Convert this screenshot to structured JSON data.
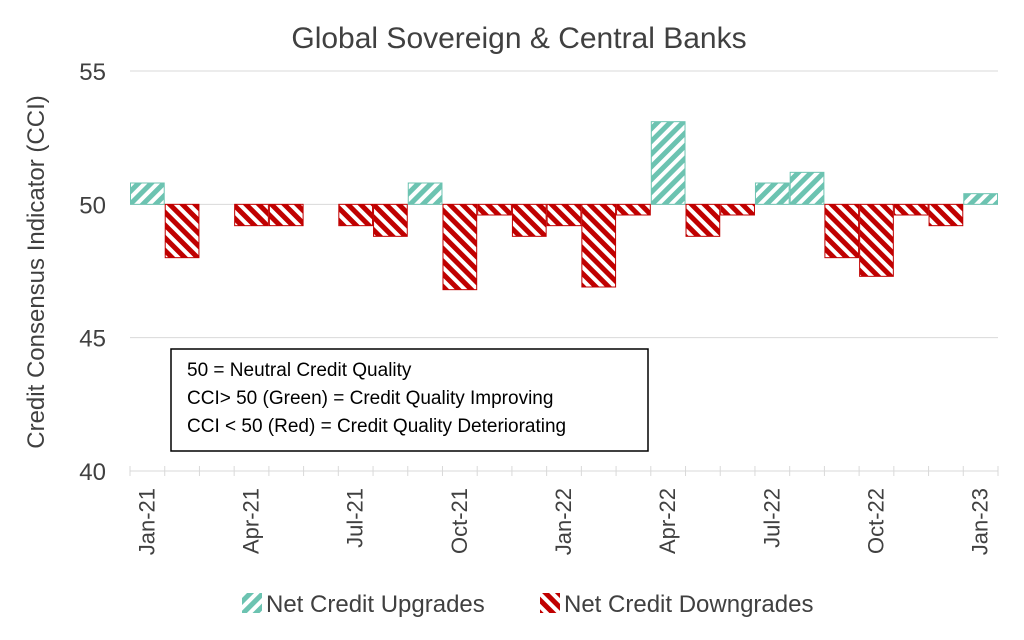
{
  "chart_data": {
    "type": "bar",
    "title": "Global Sovereign & Central Banks",
    "ylabel": "Credit Consensus Indicator (CCI)",
    "xlabel": "",
    "ylim": [
      40,
      55
    ],
    "yticks": [
      40,
      45,
      50,
      55
    ],
    "baseline": 50,
    "grid": "horizontal",
    "legend_position": "bottom",
    "categories": [
      "Jan-21",
      "Feb-21",
      "Mar-21",
      "Apr-21",
      "May-21",
      "Jun-21",
      "Jul-21",
      "Aug-21",
      "Sep-21",
      "Oct-21",
      "Nov-21",
      "Dec-21",
      "Jan-22",
      "Feb-22",
      "Mar-22",
      "Apr-22",
      "May-22",
      "Jun-22",
      "Jul-22",
      "Aug-22",
      "Sep-22",
      "Oct-22",
      "Nov-22",
      "Dec-22",
      "Jan-23"
    ],
    "x_tick_labels": [
      "Jan-21",
      "Apr-21",
      "Jul-21",
      "Oct-21",
      "Jan-22",
      "Apr-22",
      "Jul-22",
      "Oct-22",
      "Jan-23"
    ],
    "values": [
      50.8,
      48.0,
      null,
      49.2,
      49.2,
      null,
      49.2,
      48.8,
      50.8,
      46.8,
      49.6,
      48.8,
      49.2,
      46.9,
      49.6,
      53.1,
      48.8,
      49.6,
      50.8,
      51.2,
      48.0,
      47.3,
      49.6,
      49.2,
      50.4
    ],
    "series": [
      {
        "name": "Net Credit Upgrades",
        "color": "#6cc3b1",
        "rule": "value > 50"
      },
      {
        "name": "Net Credit Downgrades",
        "color": "#c00000",
        "rule": "value < 50"
      }
    ]
  },
  "note": {
    "line1": "50 = Neutral Credit Quality",
    "line2": "CCI> 50 (Green) = Credit Quality Improving",
    "line3": "CCI < 50 (Red) = Credit Quality Deteriorating"
  }
}
